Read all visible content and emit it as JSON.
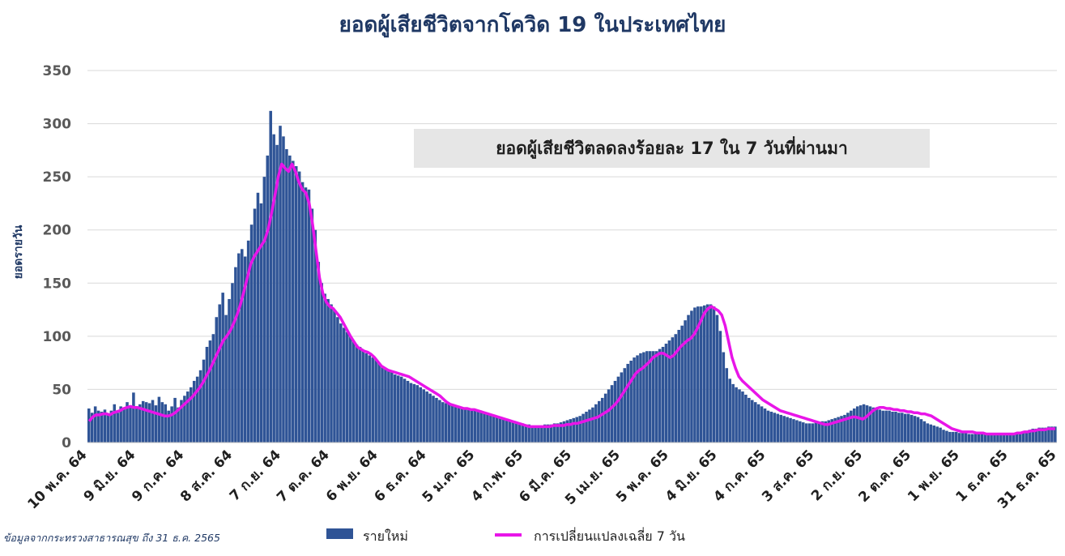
{
  "chart_data": {
    "type": "bar",
    "title": "ยอดผู้เสียชีวิตจากโควิด 19 ในประเทศไทย",
    "annotation": "ยอดผู้เสียชีวิตลดลงร้อยละ 17 ใน 7 วันที่ผ่านมา",
    "ylabel": "ยอดรายวัน",
    "xlabel": "",
    "ylim": [
      0,
      350
    ],
    "yticks": [
      0,
      50,
      100,
      150,
      200,
      250,
      300,
      350
    ],
    "grid": true,
    "legend_position": "bottom",
    "source": "ข้อมูลจากกระทรวงสาธารณสุข ถึง 31 ธ.ค. 2565",
    "x_tick_labels": [
      "10 พ.ค. 64",
      "9 มิ.ย. 64",
      "9 ก.ค. 64",
      "8 ส.ค. 64",
      "7 ก.ย. 64",
      "7 ต.ค. 64",
      "6 พ.ย. 64",
      "6 ธ.ค. 64",
      "5 ม.ค. 65",
      "4 ก.พ. 65",
      "6 มี.ค. 65",
      "5 เม.ย. 65",
      "5 พ.ค. 65",
      "4 มิ.ย. 65",
      "4 ก.ค. 65",
      "3 ส.ค. 65",
      "2 ก.ย. 65",
      "2 ต.ค. 65",
      "1 พ.ย. 65",
      "1 ธ.ค. 65",
      "31 ธ.ค. 65"
    ],
    "x_range": [
      "10 พ.ค. 64",
      "31 ธ.ค. 65"
    ],
    "series": [
      {
        "name": "รายใหม่",
        "kind": "bar",
        "color": "#2f5496",
        "values": [
          32,
          28,
          34,
          30,
          29,
          31,
          27,
          30,
          36,
          28,
          34,
          32,
          38,
          35,
          47,
          34,
          36,
          39,
          38,
          37,
          40,
          35,
          43,
          38,
          36,
          30,
          34,
          42,
          33,
          40,
          44,
          48,
          52,
          58,
          62,
          68,
          78,
          90,
          96,
          102,
          118,
          130,
          141,
          120,
          135,
          150,
          165,
          178,
          182,
          175,
          190,
          205,
          220,
          235,
          225,
          250,
          270,
          312,
          290,
          280,
          298,
          288,
          276,
          270,
          265,
          260,
          255,
          245,
          240,
          238,
          220,
          200,
          170,
          150,
          140,
          135,
          130,
          125,
          118,
          112,
          108,
          104,
          100,
          95,
          92,
          90,
          87,
          84,
          82,
          80,
          78,
          75,
          72,
          70,
          68,
          66,
          64,
          63,
          62,
          60,
          58,
          56,
          55,
          54,
          52,
          50,
          48,
          46,
          44,
          42,
          40,
          38,
          37,
          36,
          35,
          34,
          33,
          33,
          32,
          31,
          31,
          30,
          30,
          29,
          28,
          28,
          27,
          26,
          25,
          24,
          23,
          22,
          21,
          20,
          19,
          18,
          18,
          17,
          17,
          16,
          16,
          16,
          16,
          17,
          17,
          17,
          18,
          18,
          19,
          20,
          21,
          22,
          23,
          24,
          25,
          27,
          29,
          31,
          33,
          36,
          39,
          42,
          46,
          50,
          54,
          58,
          62,
          66,
          70,
          74,
          77,
          80,
          82,
          84,
          85,
          86,
          86,
          86,
          86,
          88,
          90,
          93,
          96,
          99,
          102,
          106,
          110,
          115,
          120,
          124,
          127,
          128,
          128,
          129,
          130,
          130,
          128,
          120,
          105,
          85,
          70,
          60,
          55,
          52,
          50,
          48,
          45,
          42,
          40,
          38,
          36,
          34,
          32,
          30,
          29,
          28,
          27,
          26,
          25,
          24,
          23,
          22,
          21,
          20,
          19,
          18,
          18,
          18,
          19,
          19,
          20,
          20,
          21,
          22,
          23,
          24,
          25,
          26,
          28,
          30,
          32,
          34,
          35,
          36,
          35,
          34,
          33,
          32,
          31,
          30,
          30,
          30,
          29,
          29,
          28,
          28,
          27,
          27,
          26,
          25,
          24,
          22,
          20,
          18,
          17,
          16,
          15,
          14,
          12,
          11,
          10,
          10,
          10,
          9,
          9,
          9,
          8,
          8,
          8,
          8,
          8,
          8,
          7,
          7,
          7,
          7,
          7,
          7,
          7,
          7,
          8,
          8,
          9,
          10,
          11,
          12,
          13,
          13,
          14,
          14,
          14,
          15,
          15,
          15
        ]
      },
      {
        "name": "การเปลี่ยนแปลงเฉลี่ย 7 วัน",
        "kind": "line",
        "color": "#e815e8",
        "values": [
          20,
          24,
          26,
          26,
          27,
          27,
          26,
          28,
          29,
          30,
          32,
          33,
          34,
          33,
          33,
          32,
          31,
          30,
          29,
          28,
          27,
          26,
          25,
          25,
          26,
          28,
          31,
          34,
          37,
          40,
          43,
          47,
          51,
          56,
          62,
          68,
          75,
          82,
          89,
          96,
          100,
          105,
          112,
          120,
          130,
          142,
          155,
          168,
          175,
          180,
          185,
          190,
          200,
          215,
          232,
          250,
          262,
          258,
          255,
          262,
          255,
          245,
          238,
          235,
          225,
          205,
          180,
          155,
          140,
          132,
          128,
          126,
          122,
          118,
          112,
          106,
          100,
          95,
          90,
          88,
          86,
          85,
          83,
          80,
          76,
          72,
          70,
          68,
          67,
          66,
          65,
          64,
          63,
          62,
          60,
          58,
          56,
          54,
          52,
          50,
          48,
          46,
          44,
          41,
          38,
          36,
          35,
          34,
          33,
          32,
          32,
          31,
          31,
          30,
          29,
          28,
          27,
          26,
          25,
          24,
          23,
          22,
          21,
          20,
          19,
          18,
          17,
          16,
          15,
          15,
          15,
          15,
          15,
          15,
          15,
          16,
          16,
          16,
          16,
          17,
          17,
          18,
          18,
          19,
          20,
          21,
          22,
          23,
          24,
          26,
          28,
          30,
          33,
          36,
          40,
          45,
          50,
          55,
          60,
          65,
          68,
          70,
          73,
          76,
          80,
          82,
          84,
          84,
          82,
          80,
          82,
          86,
          90,
          93,
          96,
          98,
          102,
          108,
          115,
          122,
          126,
          128,
          126,
          124,
          120,
          110,
          95,
          80,
          70,
          62,
          58,
          55,
          52,
          49,
          46,
          43,
          40,
          38,
          36,
          34,
          32,
          30,
          29,
          28,
          27,
          26,
          25,
          24,
          23,
          22,
          21,
          20,
          19,
          18,
          17,
          17,
          18,
          19,
          20,
          21,
          22,
          23,
          24,
          24,
          23,
          22,
          24,
          27,
          30,
          32,
          33,
          33,
          32,
          32,
          31,
          31,
          30,
          30,
          29,
          29,
          28,
          28,
          27,
          27,
          26,
          25,
          23,
          21,
          19,
          17,
          15,
          13,
          12,
          11,
          10,
          10,
          10,
          10,
          9,
          9,
          9,
          8,
          8,
          8,
          8,
          8,
          8,
          8,
          8,
          8,
          9,
          9,
          10,
          10,
          11,
          11,
          12,
          12,
          12,
          13,
          13,
          13
        ]
      }
    ]
  }
}
